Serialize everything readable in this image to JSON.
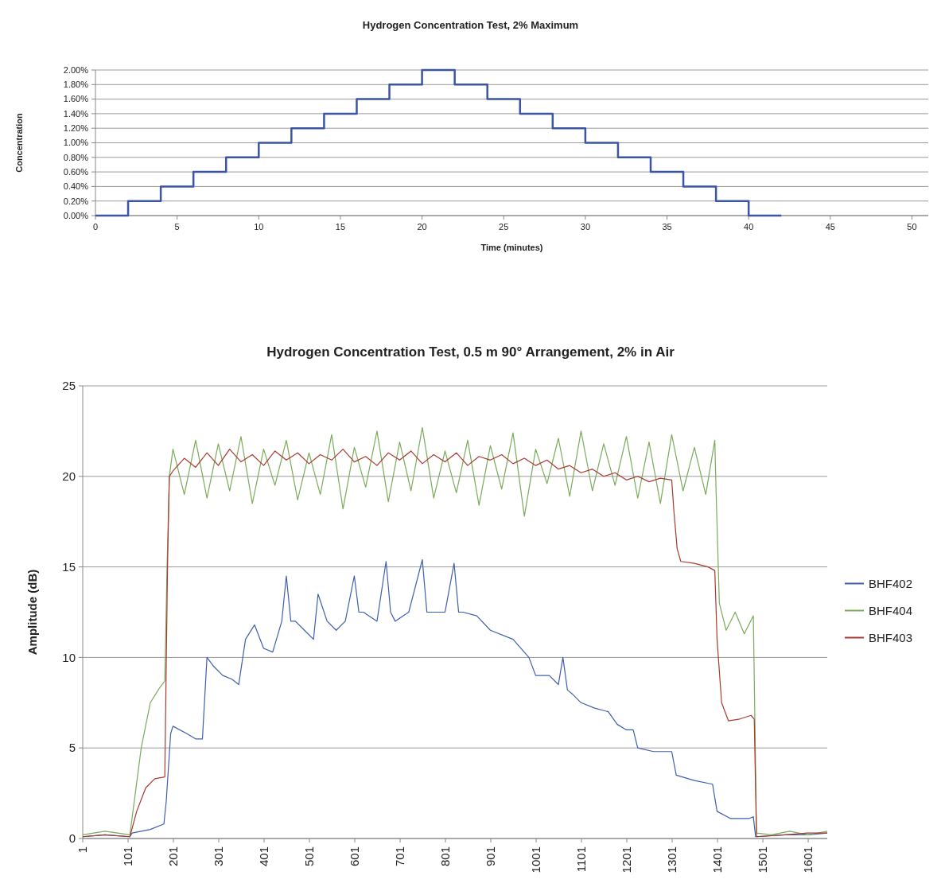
{
  "chart_data": [
    {
      "type": "step",
      "title": "Hydrogen Concentration Test, 2% Maximum",
      "xlabel": "Time (minutes)",
      "ylabel": "Concentration",
      "xlim": [
        0,
        51
      ],
      "xticks": [
        0,
        5,
        10,
        15,
        20,
        25,
        30,
        35,
        40,
        45,
        50
      ],
      "ylim": [
        0,
        2
      ],
      "yticks": [
        {
          "value": 0,
          "label": "0.00%"
        },
        {
          "value": 0.2,
          "label": "0.20%"
        },
        {
          "value": 0.4,
          "label": "0.40%"
        },
        {
          "value": 0.6,
          "label": "0.60%"
        },
        {
          "value": 0.8,
          "label": "0.80%"
        },
        {
          "value": 1,
          "label": "1.00%"
        },
        {
          "value": 1.2,
          "label": "1.20%"
        },
        {
          "value": 1.4,
          "label": "1.40%"
        },
        {
          "value": 1.6,
          "label": "1.60%"
        },
        {
          "value": 1.8,
          "label": "1.80%"
        },
        {
          "value": 2,
          "label": "2.00%"
        }
      ],
      "grid": "y",
      "legend": false,
      "x": [
        0,
        2,
        4,
        6,
        8,
        10,
        12,
        14,
        16,
        18,
        20,
        22,
        24,
        26,
        28,
        30,
        32,
        34,
        36,
        38,
        40,
        42
      ],
      "series": [
        {
          "color": "#3a55a4",
          "values": [
            0,
            0.2,
            0.4,
            0.6,
            0.8,
            1,
            1.2,
            1.4,
            1.6,
            1.8,
            2,
            1.8,
            1.6,
            1.4,
            1.2,
            1,
            0.8,
            0.6,
            0.4,
            0.2,
            0,
            0
          ]
        }
      ]
    },
    {
      "type": "line",
      "title": "Hydrogen Concentration Test, 0.5 m 90° Arrangement, 2% in Air",
      "ylabel": "Amplitude (dB)",
      "xlim": [
        1,
        1643
      ],
      "xticks": [
        1,
        101,
        201,
        301,
        401,
        501,
        601,
        701,
        801,
        901,
        1001,
        1101,
        1201,
        1301,
        1401,
        1501,
        1601
      ],
      "ylim": [
        0,
        25
      ],
      "yticks": [
        0,
        5,
        10,
        15,
        20,
        25
      ],
      "grid": "y",
      "legend": "right",
      "series": [
        {
          "name": "BHF402",
          "color": "#3f5fae",
          "x": [
            1,
            50,
            105,
            110,
            150,
            180,
            185,
            195,
            200,
            230,
            250,
            265,
            275,
            290,
            310,
            330,
            345,
            360,
            380,
            400,
            420,
            440,
            450,
            460,
            470,
            490,
            510,
            520,
            540,
            560,
            580,
            600,
            610,
            620,
            650,
            670,
            680,
            690,
            720,
            750,
            760,
            770,
            800,
            820,
            830,
            840,
            870,
            900,
            950,
            985,
            1000,
            1030,
            1050,
            1060,
            1070,
            1080,
            1100,
            1130,
            1160,
            1180,
            1200,
            1215,
            1225,
            1260,
            1300,
            1310,
            1350,
            1390,
            1400,
            1430,
            1470,
            1480,
            1485,
            1550,
            1600,
            1643
          ],
          "values": [
            0.1,
            0.2,
            0.1,
            0.3,
            0.5,
            0.8,
            2,
            5.8,
            6.2,
            5.8,
            5.5,
            5.5,
            10,
            9.5,
            9,
            8.8,
            8.5,
            11,
            11.8,
            10.5,
            10.3,
            12,
            14.5,
            12,
            12,
            11.5,
            11,
            13.5,
            12,
            11.5,
            12,
            14.5,
            12.5,
            12.5,
            12,
            15.3,
            12.5,
            12,
            12.5,
            15.4,
            12.5,
            12.5,
            12.5,
            15.2,
            12.5,
            12.5,
            12.3,
            11.5,
            11,
            10,
            9,
            9,
            8.5,
            10,
            8.2,
            8,
            7.5,
            7.2,
            7,
            6.3,
            6,
            6,
            5,
            4.8,
            4.8,
            3.5,
            3.2,
            3,
            1.5,
            1.1,
            1.1,
            1.2,
            0.1,
            0.2,
            0.2,
            0.3
          ]
        },
        {
          "name": "BHF404",
          "color": "#7aab5a",
          "x": [
            1,
            50,
            105,
            130,
            150,
            170,
            182,
            187,
            192,
            200,
            225,
            250,
            275,
            300,
            325,
            350,
            375,
            400,
            425,
            450,
            475,
            500,
            525,
            550,
            575,
            600,
            625,
            650,
            675,
            700,
            725,
            750,
            775,
            800,
            825,
            850,
            875,
            900,
            925,
            950,
            975,
            1000,
            1025,
            1050,
            1075,
            1100,
            1125,
            1150,
            1175,
            1200,
            1225,
            1250,
            1275,
            1300,
            1325,
            1350,
            1375,
            1395,
            1398,
            1405,
            1420,
            1440,
            1460,
            1480,
            1487,
            1520,
            1560,
            1600,
            1643
          ],
          "values": [
            0.2,
            0.4,
            0.2,
            5,
            7.5,
            8.3,
            8.7,
            15,
            20,
            21.5,
            19,
            22,
            18.8,
            21.8,
            19.2,
            22.2,
            18.5,
            21.5,
            19.5,
            22,
            18.7,
            21.3,
            19,
            22.3,
            18.2,
            21.6,
            19.4,
            22.5,
            18.6,
            21.9,
            19.2,
            22.7,
            18.8,
            21.4,
            19.1,
            22,
            18.4,
            21.7,
            19.3,
            22.4,
            17.8,
            21.5,
            19.6,
            22.1,
            18.9,
            22.5,
            19.2,
            21.8,
            19.5,
            22.2,
            18.8,
            21.9,
            18.5,
            22.3,
            19.2,
            21.6,
            19,
            22,
            19,
            13,
            11.5,
            12.5,
            11.3,
            12.3,
            0.3,
            0.2,
            0.4,
            0.2,
            0.4
          ]
        },
        {
          "name": "BHF403",
          "color": "#a83a32",
          "x": [
            1,
            50,
            105,
            120,
            140,
            160,
            182,
            188,
            192,
            200,
            225,
            250,
            275,
            300,
            325,
            350,
            375,
            400,
            425,
            450,
            475,
            500,
            525,
            550,
            575,
            600,
            625,
            650,
            675,
            700,
            725,
            750,
            775,
            800,
            825,
            850,
            875,
            900,
            925,
            950,
            975,
            1000,
            1025,
            1050,
            1075,
            1100,
            1125,
            1150,
            1175,
            1200,
            1225,
            1250,
            1275,
            1300,
            1305,
            1312,
            1320,
            1350,
            1380,
            1395,
            1400,
            1410,
            1425,
            1450,
            1475,
            1482,
            1487,
            1550,
            1600,
            1643
          ],
          "values": [
            0.1,
            0.2,
            0.1,
            1.5,
            2.8,
            3.3,
            3.4,
            15,
            20,
            20.3,
            21,
            20.5,
            21.3,
            20.6,
            21.5,
            20.8,
            21.2,
            20.6,
            21.4,
            20.9,
            21.3,
            20.7,
            21.2,
            20.9,
            21.5,
            20.8,
            21.1,
            20.6,
            21.3,
            20.9,
            21.4,
            20.7,
            21.2,
            20.8,
            21.3,
            20.6,
            21.1,
            20.9,
            21.2,
            20.7,
            21,
            20.6,
            20.9,
            20.4,
            20.6,
            20.2,
            20.4,
            20,
            20.2,
            19.8,
            20,
            19.7,
            19.9,
            19.8,
            18,
            16,
            15.3,
            15.2,
            15,
            14.8,
            11,
            7.5,
            6.5,
            6.6,
            6.8,
            6.6,
            0.1,
            0.2,
            0.3,
            0.3
          ]
        }
      ]
    }
  ]
}
